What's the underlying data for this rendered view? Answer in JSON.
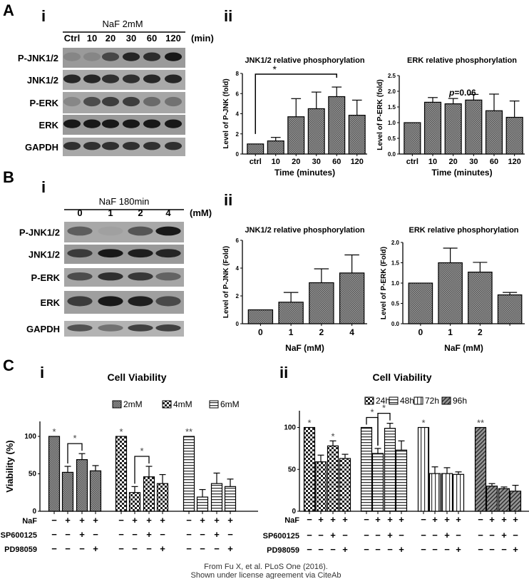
{
  "panels": {
    "A": "A",
    "B": "B",
    "C": "C",
    "i": "i",
    "ii": "ii"
  },
  "blot_A": {
    "header": "NaF 2mM",
    "lanes": [
      "Ctrl",
      "10",
      "20",
      "30",
      "60",
      "120"
    ],
    "unit": "(min)",
    "rows": [
      "P-JNK1/2",
      "JNK1/2",
      "P-ERK",
      "ERK",
      "GAPDH"
    ]
  },
  "blot_B": {
    "header": "NaF 180min",
    "lanes": [
      "0",
      "1",
      "2",
      "4"
    ],
    "unit": "(mM)",
    "rows": [
      "P-JNK1/2",
      "JNK1/2",
      "P-ERK",
      "ERK",
      "GAPDH"
    ]
  },
  "footer": {
    "line1": "From Fu X, et al. PLoS One (2016).",
    "line2": "Shown under license agreement via CiteAb"
  },
  "chart_data": [
    {
      "type": "bar",
      "title": "JNK1/2 relative phosphorylation",
      "xlabel": "Time (minutes)",
      "ylabel": "Level of P-JNK (fold)",
      "categories": [
        "ctrl",
        "10",
        "20",
        "30",
        "60",
        "120"
      ],
      "values": [
        1,
        1.3,
        3.7,
        4.5,
        5.7,
        3.85
      ],
      "errors": [
        0,
        0.35,
        1.8,
        1.65,
        0.95,
        1.5
      ],
      "ylim": [
        0,
        8
      ],
      "yticks": [
        "0",
        "2",
        "4",
        "6",
        "8"
      ],
      "brackets": [
        {
          "from": 0,
          "to": 4,
          "text": "*"
        }
      ],
      "pattern": "fine-check",
      "grid": false
    },
    {
      "type": "bar",
      "title": "ERK relative phosphorylation",
      "xlabel": "Time (minutes)",
      "ylabel": "Level of P-ERK (fold)",
      "categories": [
        "ctrl",
        "10",
        "20",
        "30",
        "60",
        "120"
      ],
      "values": [
        1,
        1.65,
        1.6,
        1.72,
        1.38,
        1.17
      ],
      "errors": [
        0,
        0.15,
        0.17,
        0.18,
        0.53,
        0.52
      ],
      "ylim": [
        0,
        2.5
      ],
      "yticks": [
        "0.0",
        "0.5",
        "1.0",
        "1.5",
        "2.0",
        "2.5"
      ],
      "annotation": {
        "p": "p",
        "rest": "=0.06"
      },
      "pattern": "fine-check",
      "grid": false
    },
    {
      "type": "bar",
      "title": "JNK1/2 relative phosphorylation",
      "xlabel": "NaF (mM)",
      "ylabel": "Level of P-JNK (Fold)",
      "categories": [
        "0",
        "1",
        "2",
        "4"
      ],
      "values": [
        1,
        1.55,
        2.95,
        3.65
      ],
      "errors": [
        0,
        0.7,
        1.0,
        1.3
      ],
      "ylim": [
        0,
        6
      ],
      "yticks": [
        "0",
        "2",
        "4",
        "6"
      ],
      "pattern": "fine-check",
      "grid": false
    },
    {
      "type": "bar",
      "title": "ERK relative phosphorylation",
      "xlabel": "NaF (mM)",
      "ylabel": "Level of P-ERK (Fold)",
      "categories": [
        "0",
        "1",
        "2",
        ""
      ],
      "values": [
        1,
        1.5,
        1.27,
        0.71
      ],
      "errors": [
        0,
        0.36,
        0.24,
        0.06
      ],
      "ylim": [
        0,
        2
      ],
      "yticks": [
        "0.0",
        "0.5",
        "1.0",
        "1.5",
        "2.0"
      ],
      "pattern": "fine-check",
      "grid": false
    },
    {
      "type": "bar",
      "title": "Cell Viability",
      "ylabel": "Viability (%)",
      "ylim": [
        0,
        120
      ],
      "yticks": [
        "0",
        "50",
        "100"
      ],
      "legend": "top",
      "grid": false,
      "series": [
        {
          "name": "2mM",
          "values": [
            100,
            52,
            69,
            54
          ],
          "errors": [
            0,
            8,
            8,
            7
          ],
          "pattern": "fine-check"
        },
        {
          "name": "4mM",
          "values": [
            100,
            25,
            46,
            37
          ],
          "errors": [
            0,
            8,
            14,
            12
          ],
          "pattern": "check"
        },
        {
          "name": "6mM",
          "values": [
            100,
            19,
            37,
            33
          ],
          "errors": [
            0,
            10,
            14,
            10
          ],
          "pattern": "hlines"
        }
      ],
      "treatments": [
        {
          "label": "NaF",
          "signs": [
            "−",
            "+",
            "+",
            "+"
          ]
        },
        {
          "label": "SP600125",
          "signs": [
            "−",
            "−",
            "+",
            "−"
          ]
        },
        {
          "label": "PD98059",
          "signs": [
            "−",
            "−",
            "−",
            "+"
          ]
        }
      ],
      "stars": [
        {
          "series": 0,
          "bar": 0,
          "text": "*"
        },
        {
          "series": 1,
          "bar": 0,
          "text": "*"
        },
        {
          "series": 2,
          "bar": 0,
          "text": "**"
        }
      ],
      "brackets": [
        {
          "series": 0,
          "from": 1,
          "to": 2,
          "text": "*"
        },
        {
          "series": 1,
          "from": 1,
          "to": 2,
          "text": "*"
        }
      ]
    },
    {
      "type": "bar",
      "title": "Cell Viability",
      "ylabel": "",
      "ylim": [
        0,
        120
      ],
      "yticks": [
        "0",
        "50",
        "100"
      ],
      "legend": "top-right",
      "grid": false,
      "series": [
        {
          "name": "24h",
          "values": [
            100,
            59,
            78,
            63
          ],
          "errors": [
            0,
            8,
            6,
            5
          ],
          "pattern": "check"
        },
        {
          "name": "48h",
          "values": [
            100,
            69,
            99,
            73
          ],
          "errors": [
            0,
            6,
            6,
            11
          ],
          "pattern": "hlines"
        },
        {
          "name": "72h",
          "values": [
            100,
            45,
            45,
            44
          ],
          "errors": [
            0,
            8,
            7,
            3
          ],
          "pattern": "vlines"
        },
        {
          "name": "96h",
          "values": [
            100,
            30,
            27,
            24
          ],
          "errors": [
            0,
            3,
            2,
            7
          ],
          "pattern": "diag"
        }
      ],
      "treatments": [
        {
          "label": "NaF",
          "signs": [
            "−",
            "+",
            "+",
            "+"
          ]
        },
        {
          "label": "SP600125",
          "signs": [
            "−",
            "−",
            "+",
            "−"
          ]
        },
        {
          "label": "PD98059",
          "signs": [
            "−",
            "−",
            "−",
            "+"
          ]
        }
      ],
      "stars": [
        {
          "series": 0,
          "bar": 0,
          "text": "*"
        },
        {
          "series": 0,
          "bar": 2,
          "text": "*"
        },
        {
          "series": 2,
          "bar": 0,
          "text": "*"
        },
        {
          "series": 3,
          "bar": 0,
          "text": "**"
        }
      ],
      "brackets": [
        {
          "series": 1,
          "from": 0,
          "to": 1,
          "text": "*"
        },
        {
          "series": 1,
          "from": 1,
          "to": 2,
          "text": "*"
        }
      ]
    }
  ]
}
